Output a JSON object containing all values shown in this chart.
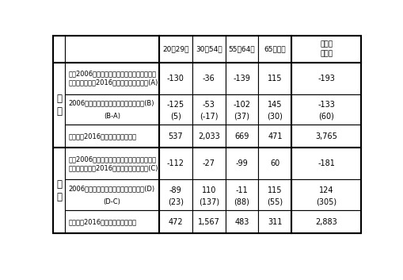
{
  "col_headers": [
    "20〜29歳",
    "30〜54歳",
    "55〜64歳",
    "65歳以上",
    "その他\nとも計"
  ],
  "groups": [
    {
      "label": "男\n性",
      "rows": [
        {
          "label1": "他に2006年時点と同じ労働力人口比率が続い",
          "label2": "たとした場合の2016年までの変化幅試算(A)",
          "v1": "-130",
          "v2": "-36",
          "v3": "-139",
          "v4": "115",
          "v5": "-193",
          "sub1": "",
          "sub2": "",
          "sub3": "",
          "sub4": "",
          "sub5": "",
          "has_sub": false
        },
        {
          "label1": "2006年から６１年までの変化幅の実績(B)",
          "label2": "(B-A)",
          "v1": "-125",
          "v2": "-53",
          "v3": "-102",
          "v4": "145",
          "v5": "-133",
          "sub1": "(5)",
          "sub2": "(-17)",
          "sub3": "(37)",
          "sub4": "(30)",
          "sub5": "(60)",
          "has_sub": true
        },
        {
          "label1": "（参考）2016年時点の労働力人口",
          "label2": "",
          "v1": "537",
          "v2": "2,033",
          "v3": "669",
          "v4": "471",
          "v5": "3,765",
          "sub1": "",
          "sub2": "",
          "sub3": "",
          "sub4": "",
          "sub5": "",
          "has_sub": false
        }
      ]
    },
    {
      "label": "女\n性",
      "rows": [
        {
          "label1": "他に2006年時点と同じ労働力人口比率が続い",
          "label2": "たとした場合の2016年までの変化幅試算(C)",
          "v1": "-112",
          "v2": "-27",
          "v3": "-99",
          "v4": "60",
          "v5": "-181",
          "sub1": "",
          "sub2": "",
          "sub3": "",
          "sub4": "",
          "sub5": "",
          "has_sub": false
        },
        {
          "label1": "2006年から６１年までの変化幅の実績(D)",
          "label2": "(D-C)",
          "v1": "-89",
          "v2": "110",
          "v3": "-11",
          "v4": "115",
          "v5": "124",
          "sub1": "(23)",
          "sub2": "(137)",
          "sub3": "(88)",
          "sub4": "(55)",
          "sub5": "(305)",
          "has_sub": true
        },
        {
          "label1": "（参考）2016年時点の労働力人口",
          "label2": "",
          "v1": "472",
          "v2": "1,567",
          "v3": "483",
          "v4": "311",
          "v5": "2,883",
          "sub1": "",
          "sub2": "",
          "sub3": "",
          "sub4": "",
          "sub5": "",
          "has_sub": false
        }
      ]
    }
  ],
  "bg_color": "#ffffff",
  "line_color": "#000000",
  "font_size": 6.0,
  "header_font_size": 6.5,
  "group_font_size": 8.5,
  "value_font_size": 7.0
}
